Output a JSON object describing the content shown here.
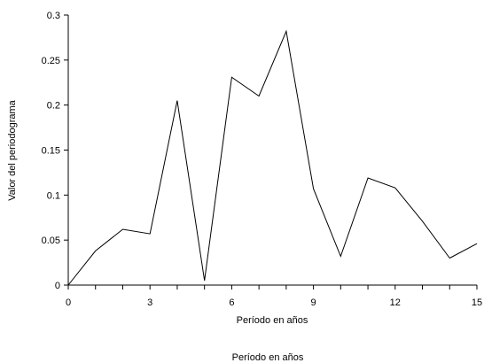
{
  "chart_data": {
    "type": "line",
    "title": "",
    "xlabel": "Período en años",
    "ylabel": "Valor del periodograma",
    "caption": "Período en años",
    "xlim": [
      0,
      15
    ],
    "ylim": [
      0,
      0.3
    ],
    "x_ticks": [
      0,
      3,
      6,
      9,
      12,
      15
    ],
    "x_tick_labels": [
      "0",
      "3",
      "6",
      "9",
      "12",
      "15"
    ],
    "y_ticks": [
      0,
      0.05,
      0.1,
      0.15,
      0.2,
      0.25,
      0.3
    ],
    "y_tick_labels": [
      "0",
      "0.05",
      "0.1",
      "0.15",
      "0.2",
      "0.25",
      "0.3"
    ],
    "grid": false,
    "legend": "none",
    "line_color": "#000000",
    "series": [
      {
        "x": [
          0,
          1,
          2,
          3,
          4,
          5,
          6,
          7,
          8,
          9,
          10,
          11,
          12,
          13,
          14,
          15
        ],
        "values": [
          0.0,
          0.038,
          0.062,
          0.057,
          0.205,
          0.005,
          0.231,
          0.21,
          0.282,
          0.107,
          0.032,
          0.119,
          0.108,
          0.071,
          0.03,
          0.046
        ]
      }
    ]
  }
}
